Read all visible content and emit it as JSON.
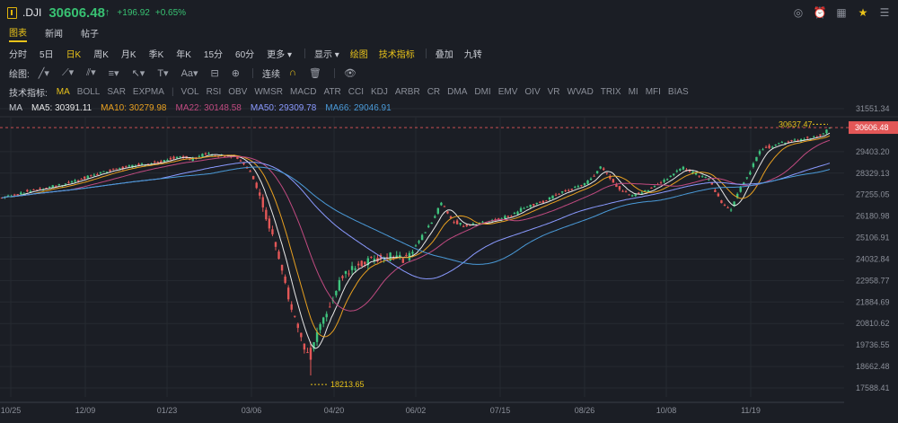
{
  "header": {
    "ticker": ".DJI",
    "price": "30606.48",
    "arrow": "↑",
    "change": "+196.92",
    "change_pct": "+0.65%"
  },
  "tabs": [
    {
      "label": "图表",
      "active": true
    },
    {
      "label": "新闻",
      "active": false
    },
    {
      "label": "帖子",
      "active": false
    }
  ],
  "periods": [
    "分时",
    "5日",
    "日K",
    "周K",
    "月K",
    "季K",
    "年K",
    "15分",
    "60分",
    "更多 ▾"
  ],
  "active_period": "日K",
  "options": {
    "display": "显示 ▾",
    "draw": "绘图",
    "indicators_btn": "技术指标",
    "overlay": "叠加",
    "nine": "九转"
  },
  "drawtools": {
    "label": "绘图:",
    "continuous": "连续"
  },
  "indicators": {
    "label": "技术指标:",
    "items": [
      "MA",
      "BOLL",
      "SAR",
      "EXPMA",
      "VOL",
      "RSI",
      "OBV",
      "WMSR",
      "MACD",
      "ATR",
      "CCI",
      "KDJ",
      "ARBR",
      "CR",
      "DMA",
      "DMI",
      "EMV",
      "OIV",
      "VR",
      "WVAD",
      "TRIX",
      "MI",
      "MFI",
      "BIAS"
    ]
  },
  "ma_legend": {
    "label": "MA",
    "items": [
      {
        "text": "MA5: 30391.11",
        "color": "#e8e8e8"
      },
      {
        "text": "MA10: 30279.98",
        "color": "#e8a020"
      },
      {
        "text": "MA22: 30148.58",
        "color": "#c04a80"
      },
      {
        "text": "MA50: 29309.78",
        "color": "#8a9aff"
      },
      {
        "text": "MA66: 29046.91",
        "color": "#4a9ad8"
      }
    ]
  },
  "chart_data": {
    "type": "candlestick",
    "y_ticks": [
      31551.34,
      30606.48,
      29403.2,
      28329.13,
      27255.05,
      26180.98,
      25106.91,
      24032.84,
      22958.77,
      21884.69,
      20810.62,
      19736.55,
      18662.48,
      17588.41
    ],
    "ylim": [
      17300,
      31900
    ],
    "x_ticks": [
      "10/25",
      "12/09",
      "01/23",
      "03/06",
      "04/20",
      "06/02",
      "07/15",
      "08/26",
      "10/08",
      "11/19"
    ],
    "high_label": "30637.47",
    "low_label": "18213.65",
    "last_price": "30606.48",
    "colors": {
      "up": "#3fc47e",
      "down": "#e35757"
    }
  }
}
